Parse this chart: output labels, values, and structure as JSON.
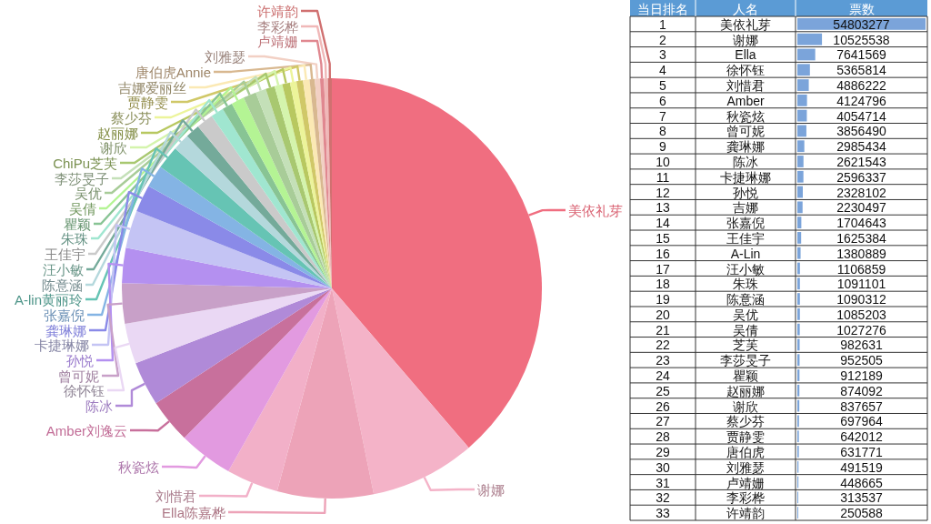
{
  "chart_data": [
    {
      "type": "pie",
      "categories": [
        "美依礼芽",
        "谢娜",
        "Ella陈嘉桦",
        "刘惜君",
        "秋瓷炫",
        "Amber刘逸云",
        "陈冰",
        "徐怀钰",
        "曾可妮",
        "孙悦",
        "卡捷琳娜",
        "龚琳娜",
        "张嘉倪",
        "A-lin黄丽玲",
        "陈意涵",
        "汪小敏",
        "王佳宇",
        "朱珠",
        "瞿颖",
        "吴倩",
        "吴优",
        "李莎旻子",
        "ChiPu芝芙",
        "谢欣",
        "赵丽娜",
        "蔡少芬",
        "贾静雯",
        "吉娜爱丽丝",
        "唐伯虎Annie",
        "刘雅瑟",
        "卢靖姗",
        "李彩桦",
        "许靖韵"
      ],
      "values": [
        38.7,
        8.1,
        7.4,
        4.0,
        4.2,
        3.4,
        3.4,
        3.1,
        3.1,
        2.7,
        2.9,
        2.1,
        1.7,
        1.8,
        1.3,
        1.1,
        1.3,
        1.0,
        0.8,
        1.0,
        1.0,
        0.8,
        0.7,
        0.6,
        0.6,
        0.5,
        0.5,
        0.5,
        0.4,
        0.4,
        0.3,
        0.3,
        0.3
      ],
      "colors": [
        "#f06e80",
        "#f4b3c8",
        "#eda3b8",
        "#f2b0c8",
        "#e29ae0",
        "#c8709c",
        "#b08ad8",
        "#ead8f4",
        "#c8a0c8",
        "#b490f0",
        "#c4c4f4",
        "#8a8ae8",
        "#84b4e4",
        "#66c4b4",
        "#b4d8dc",
        "#74aa9a",
        "#cacaca",
        "#a0e6d0",
        "#88c494",
        "#b4f494",
        "#a8cc98",
        "#c4e0b8",
        "#a8c870",
        "#d4f4ac",
        "#b8c860",
        "#ecf49a",
        "#d0c868",
        "#fbe9b4",
        "#d8b890",
        "#f2d0c4",
        "#e08890",
        "#f0b8b8",
        "#d07070"
      ]
    },
    {
      "type": "bar",
      "orientation": "horizontal",
      "y2label": "当日排名",
      "ylabel": "人名",
      "xlabel": "票数",
      "categories": [
        "美依礼芽",
        "谢娜",
        "Ella",
        "徐怀钰",
        "刘惜君",
        "Amber",
        "秋瓷炫",
        "曾可妮",
        "龚琳娜",
        "陈冰",
        "卡捷琳娜",
        "孙悦",
        "吉娜",
        "张嘉倪",
        "王佳宇",
        "A-Lin",
        "汪小敏",
        "朱珠",
        "陈意涵",
        "吴优",
        "吴倩",
        "芝芙",
        "李莎旻子",
        "瞿颖",
        "赵丽娜",
        "谢欣",
        "蔡少芬",
        "贾静雯",
        "唐伯虎",
        "刘雅瑟",
        "卢靖姗",
        "李彩桦",
        "许靖韵"
      ],
      "y2_categories": [
        "1",
        "2",
        "3",
        "4",
        "5",
        "6",
        "7",
        "8",
        "9",
        "10",
        "11",
        "12",
        "13",
        "14",
        "15",
        "16",
        "17",
        "18",
        "19",
        "20",
        "21",
        "22",
        "23",
        "24",
        "25",
        "26",
        "27",
        "28",
        "29",
        "30",
        "31",
        "32",
        "33"
      ],
      "values": [
        54803277,
        10525538,
        7641569,
        5365814,
        4886222,
        4124796,
        4054714,
        3856490,
        2985434,
        2621543,
        2596337,
        2328102,
        2230497,
        1704643,
        1625384,
        1380889,
        1106859,
        1091101,
        1090312,
        1085203,
        1027276,
        982631,
        952505,
        912189,
        874092,
        837657,
        697964,
        642012,
        631771,
        491519,
        448665,
        313537,
        250588
      ],
      "color": "#7ba4da",
      "data_labels": true,
      "grid": true
    }
  ]
}
